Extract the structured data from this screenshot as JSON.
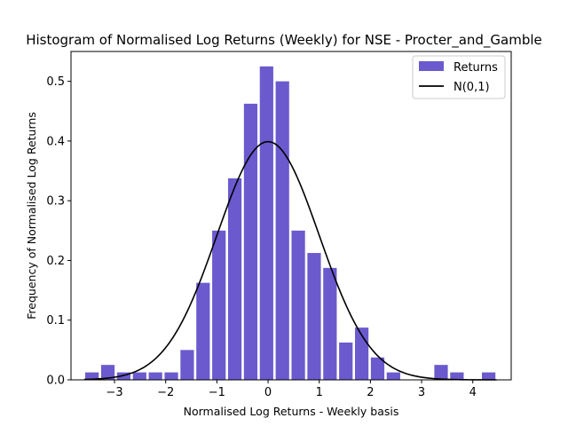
{
  "chart_data": {
    "type": "bar",
    "title": "Histogram of Normalised Log Returns (Weekly) for NSE - Procter_and_Gamble",
    "xlabel": "Normalised Log Returns - Weekly basis",
    "ylabel": "Frequency of Normalised Log Returns",
    "xlim": [
      -3.85,
      4.75
    ],
    "ylim": [
      0,
      0.55
    ],
    "xticks": [
      -3,
      -2,
      -1,
      0,
      1,
      2,
      3,
      4
    ],
    "xtick_labels": [
      "−3",
      "−2",
      "−1",
      "0",
      "1",
      "2",
      "3",
      "4"
    ],
    "yticks": [
      0.0,
      0.1,
      0.2,
      0.3,
      0.4,
      0.5
    ],
    "ytick_labels": [
      "0.0",
      "0.1",
      "0.2",
      "0.3",
      "0.4",
      "0.5"
    ],
    "bin_width": 0.31,
    "bin_centers": [
      -3.44,
      -3.13,
      -2.82,
      -2.51,
      -2.2,
      -1.89,
      -1.58,
      -1.27,
      -0.96,
      -0.65,
      -0.34,
      -0.03,
      0.28,
      0.59,
      0.9,
      1.21,
      1.52,
      1.83,
      2.14,
      2.45,
      2.76,
      3.07,
      3.38,
      3.69,
      4.0,
      4.31
    ],
    "values": [
      0.0125,
      0.025,
      0.0125,
      0.0125,
      0.0125,
      0.0125,
      0.05,
      0.1625,
      0.25,
      0.3375,
      0.4625,
      0.525,
      0.5,
      0.25,
      0.2125,
      0.1875,
      0.0625,
      0.0875,
      0.0375,
      0.0125,
      0,
      0,
      0.025,
      0.0125,
      0,
      0.0125
    ],
    "series": [
      {
        "name": "Returns",
        "kind": "histogram",
        "color": "#6a5acd"
      },
      {
        "name": "N(0,1)",
        "kind": "line",
        "color": "#000000",
        "function": "normal_pdf",
        "mean": 0,
        "std": 1
      }
    ],
    "legend_position": "upper-right",
    "grid": false
  }
}
